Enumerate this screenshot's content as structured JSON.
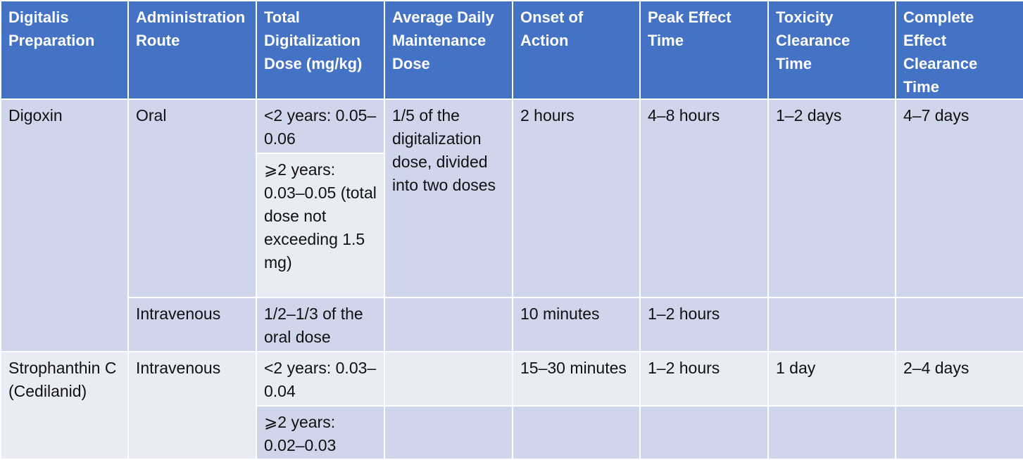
{
  "headers": [
    "Digitalis Preparation",
    "Administration Route",
    "Total Digitalization Dose (mg/kg)",
    "Average Daily Maintenance Dose",
    "Onset of Action",
    "Peak Effect Time",
    "Toxicity Clearance Time",
    "Complete Effect Clearance Time"
  ],
  "digoxin": {
    "name": "Digoxin",
    "oral": {
      "route": "Oral",
      "dose_under2": "<2 years: 0.05–0.06",
      "dose_over2": "⩾2 years: 0.03–0.05 (total dose not exceeding 1.5 mg)",
      "maintenance": "1/5 of the digitalization dose, divided into two doses",
      "onset": "2 hours",
      "peak": "4–8 hours",
      "toxicity_clearance": "1–2 days",
      "complete_clearance": "4–7 days"
    },
    "iv": {
      "route": "Intravenous",
      "dose": "1/2–1/3 of the oral dose",
      "onset": "10 minutes",
      "peak": "1–2 hours"
    }
  },
  "strophanthin": {
    "name": "Strophanthin C (Cedilanid)",
    "route": "Intravenous",
    "dose_under2": "<2 years: 0.03–0.04",
    "dose_over2": "⩾2 years: 0.02–0.03",
    "onset": "15–30 minutes",
    "peak": "1–2 hours",
    "toxicity_clearance": "1 day",
    "complete_clearance": "2–4 days"
  },
  "colors": {
    "header_bg": "#4472c4",
    "row_dark": "#cfd5ea",
    "row_light": "#e9ebf5"
  }
}
